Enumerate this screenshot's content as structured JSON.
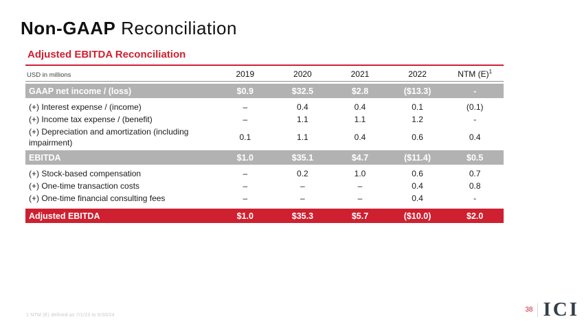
{
  "title": {
    "bold": "Non-GAAP",
    "regular": "Reconciliation"
  },
  "section": {
    "heading": "Adjusted EBITDA Reconciliation"
  },
  "table": {
    "unit_label": "USD in millions",
    "columns": [
      {
        "label": "2019",
        "sup": ""
      },
      {
        "label": "2020",
        "sup": ""
      },
      {
        "label": "2021",
        "sup": ""
      },
      {
        "label": "2022",
        "sup": ""
      },
      {
        "label": "NTM (E)",
        "sup": "1"
      }
    ],
    "rows": [
      {
        "label": "GAAP net income / (loss)",
        "style": "gray",
        "values": [
          "$0.9",
          "$32.5",
          "$2.8",
          "($13.3)",
          "-"
        ]
      },
      {
        "label": "(+) Interest expense / (income)",
        "style": "plain",
        "values": [
          "–",
          "0.4",
          "0.4",
          "0.1",
          "(0.1)"
        ]
      },
      {
        "label": "(+) Income tax expense / (benefit)",
        "style": "plain",
        "values": [
          "–",
          "1.1",
          "1.1",
          "1.2",
          "-"
        ]
      },
      {
        "label": "(+) Depreciation and amortization (including impairment)",
        "style": "plain",
        "values": [
          "0.1",
          "1.1",
          "0.4",
          "0.6",
          "0.4"
        ]
      },
      {
        "label": "EBITDA",
        "style": "gray",
        "values": [
          "$1.0",
          "$35.1",
          "$4.7",
          "($11.4)",
          "$0.5"
        ]
      },
      {
        "label": "(+) Stock-based compensation",
        "style": "plain",
        "values": [
          "–",
          "0.2",
          "1.0",
          "0.6",
          "0.7"
        ]
      },
      {
        "label": "(+) One-time transaction costs",
        "style": "plain",
        "values": [
          "–",
          "–",
          "–",
          "0.4",
          "0.8"
        ]
      },
      {
        "label": "(+) One-time financial consulting fees",
        "style": "plain",
        "values": [
          "–",
          "–",
          "–",
          "0.4",
          "-"
        ]
      },
      {
        "label": "Adjusted EBITDA",
        "style": "red",
        "values": [
          "$1.0",
          "$35.3",
          "$5.7",
          "($10.0)",
          "$2.0"
        ]
      }
    ]
  },
  "footnote": "1 NTM (E) defined as 7/1/23 to 6/30/24",
  "footer": {
    "page_number": "38",
    "logo": "ICI"
  },
  "colors": {
    "accent_red": "#ce2030",
    "band_gray": "#b2b2b2",
    "logo_navy": "#343e48"
  }
}
